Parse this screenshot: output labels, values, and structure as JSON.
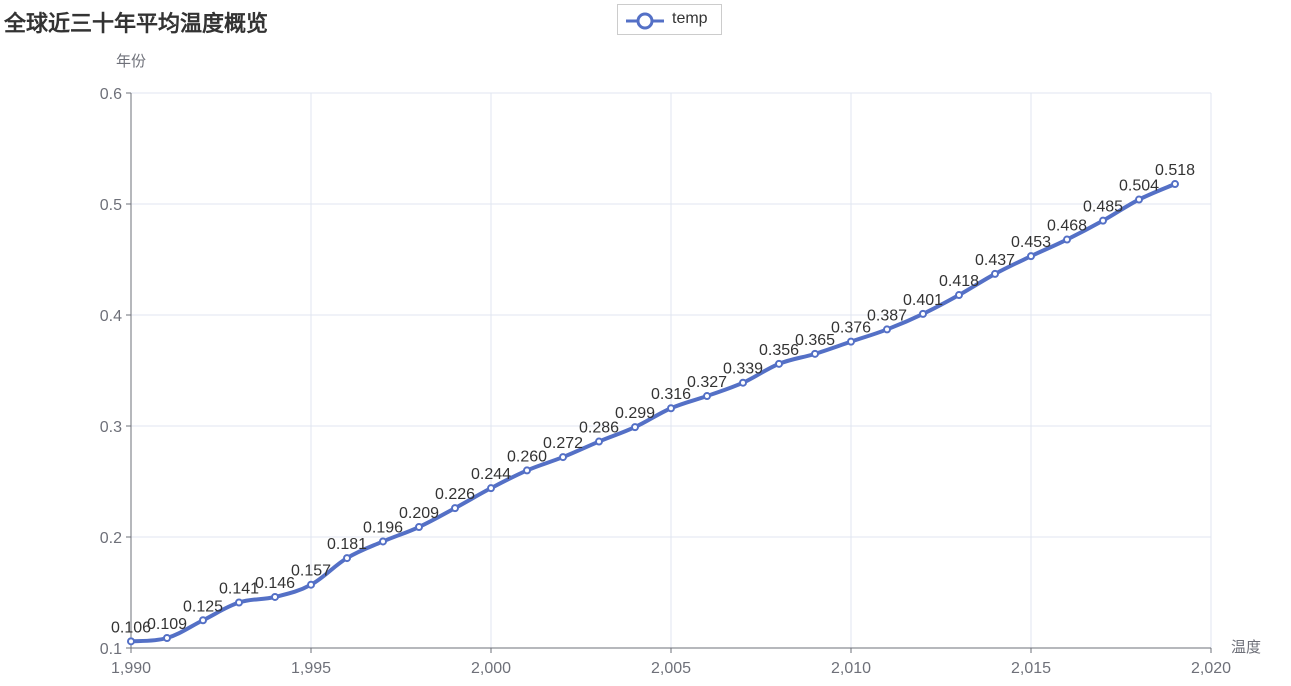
{
  "page_title": "全球近三十年平均温度概览",
  "legend": {
    "label": "temp"
  },
  "colors": {
    "series": "#5470c6",
    "grid": "#e0e6f1",
    "axis": "#6e7079",
    "text": "#333333"
  },
  "chart_data": {
    "type": "line",
    "smooth": true,
    "title": "全球近三十年平均温度概览",
    "xlabel": "温度",
    "ylabel": "年份",
    "xlim": [
      1990,
      2020
    ],
    "ylim": [
      0.1,
      0.6
    ],
    "x_ticks": [
      "1,990",
      "1,995",
      "2,000",
      "2,005",
      "2,010",
      "2,015",
      "2,020"
    ],
    "y_ticks": [
      "0.1",
      "0.2",
      "0.3",
      "0.4",
      "0.5",
      "0.6"
    ],
    "legend_position": "top-center",
    "grid": true,
    "series": [
      {
        "name": "temp",
        "x": [
          1990,
          1991,
          1992,
          1993,
          1994,
          1995,
          1996,
          1997,
          1998,
          1999,
          2000,
          2001,
          2002,
          2003,
          2004,
          2005,
          2006,
          2007,
          2008,
          2009,
          2010,
          2011,
          2012,
          2013,
          2014,
          2015,
          2016,
          2017,
          2018,
          2019
        ],
        "values": [
          0.106,
          0.109,
          0.125,
          0.141,
          0.146,
          0.157,
          0.181,
          0.196,
          0.209,
          0.226,
          0.244,
          0.26,
          0.272,
          0.286,
          0.299,
          0.316,
          0.327,
          0.339,
          0.356,
          0.365,
          0.376,
          0.387,
          0.401,
          0.418,
          0.437,
          0.453,
          0.468,
          0.485,
          0.504,
          0.518
        ],
        "labels": [
          "0.106",
          "0.109",
          "0.125",
          "0.141",
          "0.146",
          "0.157",
          "0.181",
          "0.196",
          "0.209",
          "0.226",
          "0.244",
          "0.260",
          "0.272",
          "0.286",
          "0.299",
          "0.316",
          "0.327",
          "0.339",
          "0.356",
          "0.365",
          "0.376",
          "0.387",
          "0.401",
          "0.418",
          "0.437",
          "0.453",
          "0.468",
          "0.485",
          "0.504",
          "0.518"
        ]
      }
    ]
  }
}
